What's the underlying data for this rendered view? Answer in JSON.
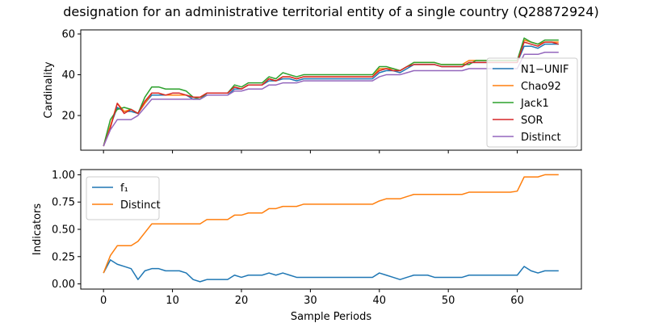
{
  "title": "designation for an administrative territorial entity of a single country (Q28872924)",
  "chart_data": [
    {
      "type": "line",
      "ylabel": "Cardinality",
      "xlabel": "",
      "xlim": [
        -3.3,
        69.3
      ],
      "ylim": [
        3,
        62
      ],
      "xticks": [
        0,
        10,
        20,
        30,
        40,
        50,
        60
      ],
      "show_xtick_labels": false,
      "yticks": [
        20,
        40,
        60
      ],
      "legend": "right",
      "x_start": 0,
      "series": [
        {
          "name": "N1−UNIF",
          "color": "#1f77b4",
          "values": [
            5,
            15,
            24,
            22,
            22,
            21,
            26,
            30,
            30,
            30,
            30,
            30,
            30,
            28,
            28,
            30,
            30,
            30,
            30,
            33,
            33,
            35,
            35,
            35,
            37,
            37,
            38,
            38,
            37,
            38,
            38,
            38,
            38,
            38,
            38,
            38,
            38,
            38,
            38,
            38,
            41,
            42,
            42,
            41,
            43,
            45,
            45,
            45,
            45,
            44,
            44,
            44,
            44,
            46,
            46,
            46,
            46,
            46,
            46,
            46,
            46,
            54,
            54,
            53,
            55,
            55,
            55
          ]
        },
        {
          "name": "Chao92",
          "color": "#ff7f0e",
          "values": [
            5,
            15,
            26,
            22,
            23,
            21,
            26,
            31,
            31,
            30,
            30,
            30,
            30,
            29,
            29,
            31,
            31,
            31,
            31,
            34,
            33,
            35,
            35,
            35,
            38,
            37,
            39,
            39,
            38,
            39,
            39,
            39,
            39,
            39,
            39,
            39,
            39,
            39,
            39,
            39,
            43,
            43,
            43,
            42,
            44,
            46,
            46,
            46,
            46,
            45,
            45,
            45,
            45,
            47,
            47,
            47,
            47,
            47,
            47,
            47,
            47,
            57,
            56,
            55,
            56,
            56,
            56
          ]
        },
        {
          "name": "Jack1",
          "color": "#2ca02c",
          "values": [
            5,
            18,
            23,
            24,
            23,
            21,
            29,
            34,
            34,
            33,
            33,
            33,
            32,
            29,
            28,
            31,
            31,
            31,
            31,
            35,
            34,
            36,
            36,
            36,
            39,
            38,
            41,
            40,
            39,
            40,
            40,
            40,
            40,
            40,
            40,
            40,
            40,
            40,
            40,
            40,
            44,
            44,
            43,
            42,
            44,
            46,
            46,
            46,
            46,
            45,
            45,
            45,
            45,
            45,
            47,
            47,
            47,
            47,
            47,
            47,
            47,
            58,
            56,
            55,
            57,
            57,
            57
          ]
        },
        {
          "name": "SOR",
          "color": "#d62728",
          "values": [
            5,
            14,
            26,
            21,
            23,
            21,
            27,
            31,
            31,
            30,
            31,
            31,
            30,
            29,
            29,
            31,
            31,
            31,
            31,
            34,
            33,
            35,
            35,
            35,
            38,
            37,
            39,
            39,
            38,
            39,
            39,
            39,
            39,
            39,
            39,
            39,
            39,
            39,
            39,
            39,
            42,
            43,
            42,
            42,
            44,
            45,
            45,
            45,
            45,
            44,
            44,
            44,
            44,
            46,
            46,
            46,
            46,
            46,
            46,
            46,
            46,
            56,
            55,
            54,
            56,
            56,
            55
          ]
        },
        {
          "name": "Distinct",
          "color": "#9467bd",
          "values": [
            5,
            13,
            18,
            18,
            18,
            20,
            24,
            28,
            28,
            28,
            28,
            28,
            28,
            28,
            28,
            30,
            30,
            30,
            30,
            32,
            32,
            33,
            33,
            33,
            35,
            35,
            36,
            36,
            36,
            37,
            37,
            37,
            37,
            37,
            37,
            37,
            37,
            37,
            37,
            37,
            39,
            40,
            40,
            40,
            41,
            42,
            42,
            42,
            42,
            42,
            42,
            42,
            42,
            43,
            43,
            43,
            43,
            43,
            43,
            43,
            43,
            50,
            50,
            50,
            51,
            51,
            51
          ]
        }
      ]
    },
    {
      "type": "line",
      "ylabel": "Indicators",
      "xlabel": "Sample Periods",
      "xlim": [
        -3.3,
        69.3
      ],
      "ylim": [
        -0.0475,
        1.0475
      ],
      "xticks": [
        0,
        10,
        20,
        30,
        40,
        50,
        60
      ],
      "show_xtick_labels": true,
      "yticks": [
        0.0,
        0.25,
        0.5,
        0.75,
        1.0
      ],
      "ytick_labels": [
        "0.00",
        "0.25",
        "0.50",
        "0.75",
        "1.00"
      ],
      "legend": "upper left",
      "x_start": 0,
      "series": [
        {
          "name": "f₁",
          "color": "#1f77b4",
          "values": [
            0.1,
            0.22,
            0.18,
            0.16,
            0.14,
            0.04,
            0.12,
            0.14,
            0.14,
            0.12,
            0.12,
            0.12,
            0.1,
            0.04,
            0.02,
            0.04,
            0.04,
            0.04,
            0.04,
            0.08,
            0.06,
            0.08,
            0.08,
            0.08,
            0.1,
            0.08,
            0.1,
            0.08,
            0.06,
            0.06,
            0.06,
            0.06,
            0.06,
            0.06,
            0.06,
            0.06,
            0.06,
            0.06,
            0.06,
            0.06,
            0.1,
            0.08,
            0.06,
            0.04,
            0.06,
            0.08,
            0.08,
            0.08,
            0.06,
            0.06,
            0.06,
            0.06,
            0.06,
            0.08,
            0.08,
            0.08,
            0.08,
            0.08,
            0.08,
            0.08,
            0.08,
            0.16,
            0.12,
            0.1,
            0.12,
            0.12,
            0.12
          ]
        },
        {
          "name": "Distinct",
          "color": "#ff7f0e",
          "values": [
            0.1,
            0.26,
            0.35,
            0.35,
            0.35,
            0.39,
            0.47,
            0.55,
            0.55,
            0.55,
            0.55,
            0.55,
            0.55,
            0.55,
            0.55,
            0.59,
            0.59,
            0.59,
            0.59,
            0.63,
            0.63,
            0.65,
            0.65,
            0.65,
            0.69,
            0.69,
            0.71,
            0.71,
            0.71,
            0.73,
            0.73,
            0.73,
            0.73,
            0.73,
            0.73,
            0.73,
            0.73,
            0.73,
            0.73,
            0.73,
            0.76,
            0.78,
            0.78,
            0.78,
            0.8,
            0.82,
            0.82,
            0.82,
            0.82,
            0.82,
            0.82,
            0.82,
            0.82,
            0.84,
            0.84,
            0.84,
            0.84,
            0.84,
            0.84,
            0.84,
            0.85,
            0.98,
            0.98,
            0.98,
            1.0,
            1.0,
            1.0
          ]
        }
      ]
    }
  ]
}
